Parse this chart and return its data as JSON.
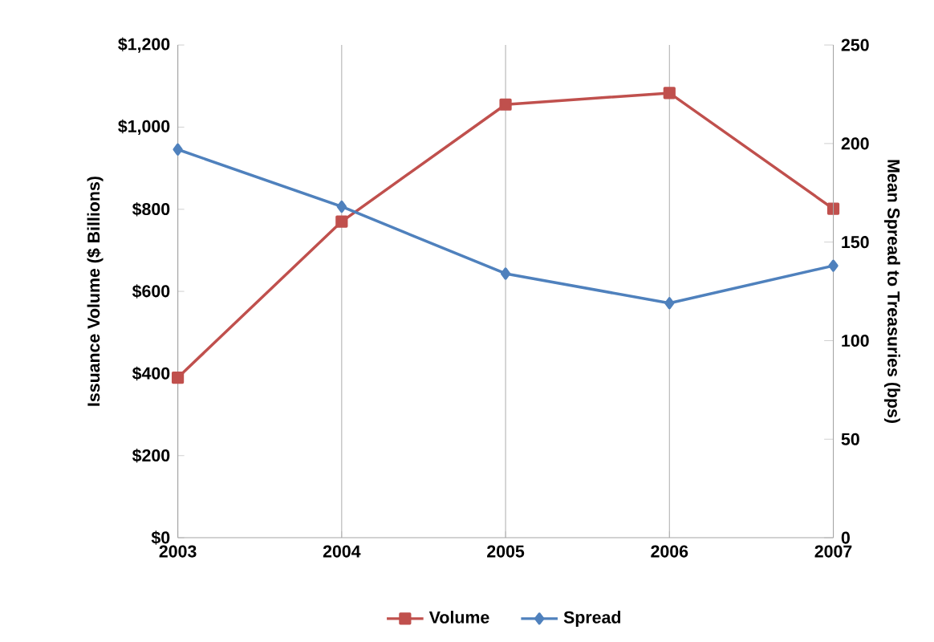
{
  "chart_data": {
    "type": "line",
    "categories": [
      "2003",
      "2004",
      "2005",
      "2006",
      "2007"
    ],
    "series": [
      {
        "name": "Volume",
        "color": "#c0504d",
        "values": [
          390,
          770,
          1055,
          1083,
          801
        ],
        "marker": "square"
      },
      {
        "name": "Spread",
        "color": "#4f81bd",
        "values": [
          197,
          168,
          134,
          119,
          138
        ],
        "marker": "diamond",
        "axis": "y2"
      }
    ],
    "ylabel": "Issuance Volume ($ Billions)",
    "y2label": "Mean Spread to Treasuries (bps)",
    "ylim": [
      0,
      1200
    ],
    "yticks": [
      {
        "value": 0,
        "label": "$0"
      },
      {
        "value": 200,
        "label": "$200"
      },
      {
        "value": 400,
        "label": "$400"
      },
      {
        "value": 600,
        "label": "$600"
      },
      {
        "value": 800,
        "label": "$800"
      },
      {
        "value": 1000,
        "label": "$1,000"
      },
      {
        "value": 1200,
        "label": "$1,200"
      }
    ],
    "y2lim": [
      0,
      250
    ],
    "y2ticks": [
      0,
      50,
      100,
      150,
      200,
      250
    ],
    "grid": "x",
    "legend": "bottom",
    "line_style": "solid"
  }
}
